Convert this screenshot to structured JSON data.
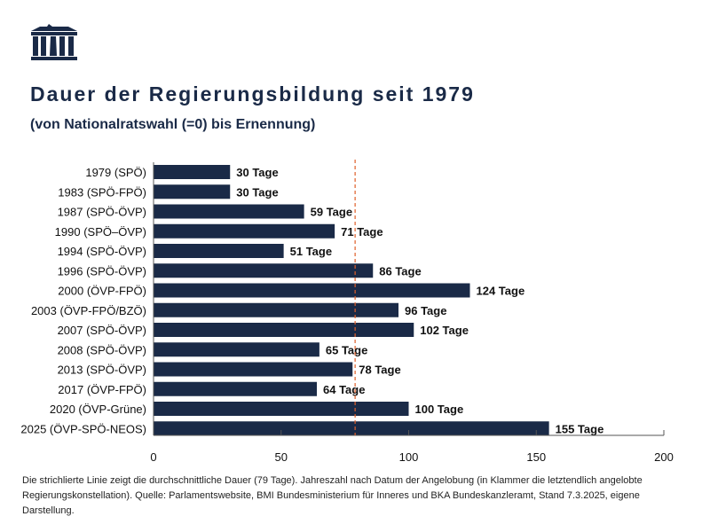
{
  "header": {
    "title": "Dauer der Regierungsbildung seit 1979",
    "subtitle": "(von Nationalratswahl (=0) bis Ernennung)"
  },
  "footnote": "Die strichlierte Linie zeigt die durchschnittliche Dauer (79 Tage). Jahreszahl nach Datum der Angelobung (in Klammer die letztendlich angelobte Regierungskonstellation). Quelle: Parlamentswebsite, BMI Bundesministerium für Inneres und BKA Bundeskanzleramt, Stand 7.3.2025, eigene Darstellung.",
  "colors": {
    "bar": "#1a2a47",
    "average_line": "#e0602a",
    "text": "#1a2a47"
  },
  "logo_icon": "parliament-building-icon",
  "chart_data": {
    "type": "bar",
    "orientation": "horizontal",
    "categories": [
      "1979 (SPÖ)",
      "1983 (SPÖ-FPÖ)",
      "1987 (SPÖ-ÖVP)",
      "1990 (SPÖ–ÖVP)",
      "1994 (SPÖ-ÖVP)",
      "1996 (SPÖ-ÖVP)",
      "2000 (ÖVP-FPÖ)",
      "2003 (ÖVP-FPÖ/BZÖ)",
      "2007 (SPÖ-ÖVP)",
      "2008 (SPÖ-ÖVP)",
      "2013 (SPÖ-ÖVP)",
      "2017 (ÖVP-FPÖ)",
      "2020 (ÖVP-Grüne)",
      "2025 (ÖVP-SPÖ-NEOS)"
    ],
    "values": [
      30,
      30,
      59,
      71,
      51,
      86,
      124,
      96,
      102,
      65,
      78,
      64,
      100,
      155
    ],
    "data_label_suffix": " Tage",
    "average": 79,
    "xlim": [
      0,
      200
    ],
    "xticks": [
      0,
      50,
      100,
      150,
      200
    ],
    "grid": false,
    "legend": "none"
  }
}
